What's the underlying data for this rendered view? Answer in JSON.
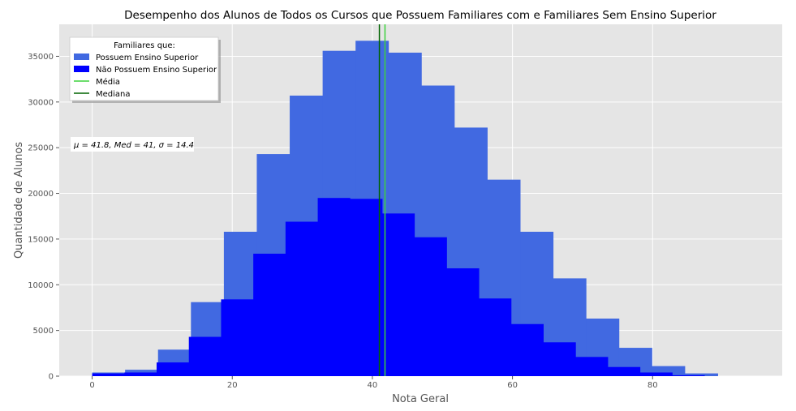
{
  "chart_data": {
    "type": "bar",
    "title": "Desempenho dos Alunos de Todos os Cursos que Possuem Familiares com e Familiares Sem Ensino Superior",
    "xlabel": "Nota Geral",
    "ylabel": "Quantidade de Alunos",
    "xlim": [
      -4.7,
      98.5
    ],
    "ylim": [
      0,
      38500
    ],
    "x_ticks": [
      0,
      20,
      40,
      60,
      80
    ],
    "y_ticks": [
      0,
      5000,
      10000,
      15000,
      20000,
      25000,
      30000,
      35000
    ],
    "grid": true,
    "legend": {
      "title": "Familiares que:",
      "placement": "top-left"
    },
    "series": [
      {
        "name": "Possuem Ensino Superior",
        "color": "#4169e1",
        "bins": [
          [
            0.0,
            4.7,
            400
          ],
          [
            4.7,
            9.4,
            700
          ],
          [
            9.4,
            14.1,
            2900
          ],
          [
            14.1,
            18.8,
            8100
          ],
          [
            18.8,
            23.5,
            15800
          ],
          [
            23.5,
            28.2,
            24300
          ],
          [
            28.2,
            32.9,
            30700
          ],
          [
            32.9,
            37.6,
            35600
          ],
          [
            37.6,
            42.3,
            36700
          ],
          [
            42.3,
            47.0,
            35400
          ],
          [
            47.0,
            51.7,
            31800
          ],
          [
            51.7,
            56.4,
            27200
          ],
          [
            56.4,
            61.1,
            21500
          ],
          [
            61.1,
            65.8,
            15800
          ],
          [
            65.8,
            70.5,
            10700
          ],
          [
            70.5,
            75.2,
            6300
          ],
          [
            75.2,
            79.9,
            3100
          ],
          [
            79.9,
            84.6,
            1100
          ],
          [
            84.6,
            89.3,
            300
          ]
        ]
      },
      {
        "name": "Não Possuem Ensino Superior",
        "color": "#0000ff",
        "bins": [
          [
            0.0,
            4.6,
            300
          ],
          [
            4.6,
            9.2,
            400
          ],
          [
            9.2,
            13.8,
            1500
          ],
          [
            13.8,
            18.4,
            4300
          ],
          [
            18.4,
            23.0,
            8400
          ],
          [
            23.0,
            27.6,
            13400
          ],
          [
            27.6,
            32.2,
            16900
          ],
          [
            32.2,
            36.8,
            19500
          ],
          [
            36.8,
            41.4,
            19400
          ],
          [
            41.4,
            46.0,
            17800
          ],
          [
            46.0,
            50.6,
            15200
          ],
          [
            50.6,
            55.2,
            11800
          ],
          [
            55.2,
            59.8,
            8500
          ],
          [
            59.8,
            64.4,
            5700
          ],
          [
            64.4,
            69.0,
            3700
          ],
          [
            69.0,
            73.6,
            2100
          ],
          [
            73.6,
            78.2,
            1000
          ],
          [
            78.2,
            82.8,
            400
          ],
          [
            82.8,
            87.4,
            100
          ]
        ]
      }
    ],
    "lines": [
      {
        "name": "Média",
        "x": 41.8,
        "color": "#3cd23c"
      },
      {
        "name": "Mediana",
        "x": 41,
        "color": "#006400"
      }
    ],
    "annotation": "μ = 41.8,  Med = 41,  σ = 14.4"
  }
}
